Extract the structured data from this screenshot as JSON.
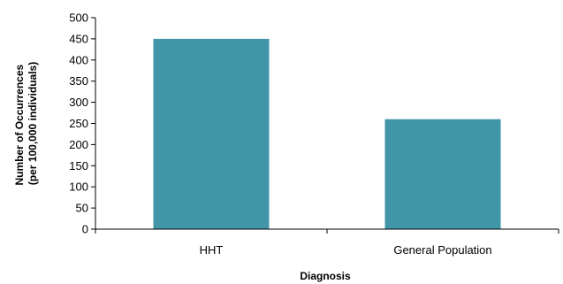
{
  "chart_data": {
    "type": "bar",
    "categories": [
      "HHT",
      "General Population"
    ],
    "values": [
      450,
      260
    ],
    "xlabel": "Diagnosis",
    "ylabel": [
      "Number of Occurrences",
      "(per 100,000 individuals)"
    ],
    "ylim": [
      0,
      500
    ],
    "yticks": [
      0,
      50,
      100,
      150,
      200,
      250,
      300,
      350,
      400,
      450,
      500
    ],
    "grid": false,
    "legend": "none",
    "bar_color": "#4196a8"
  }
}
